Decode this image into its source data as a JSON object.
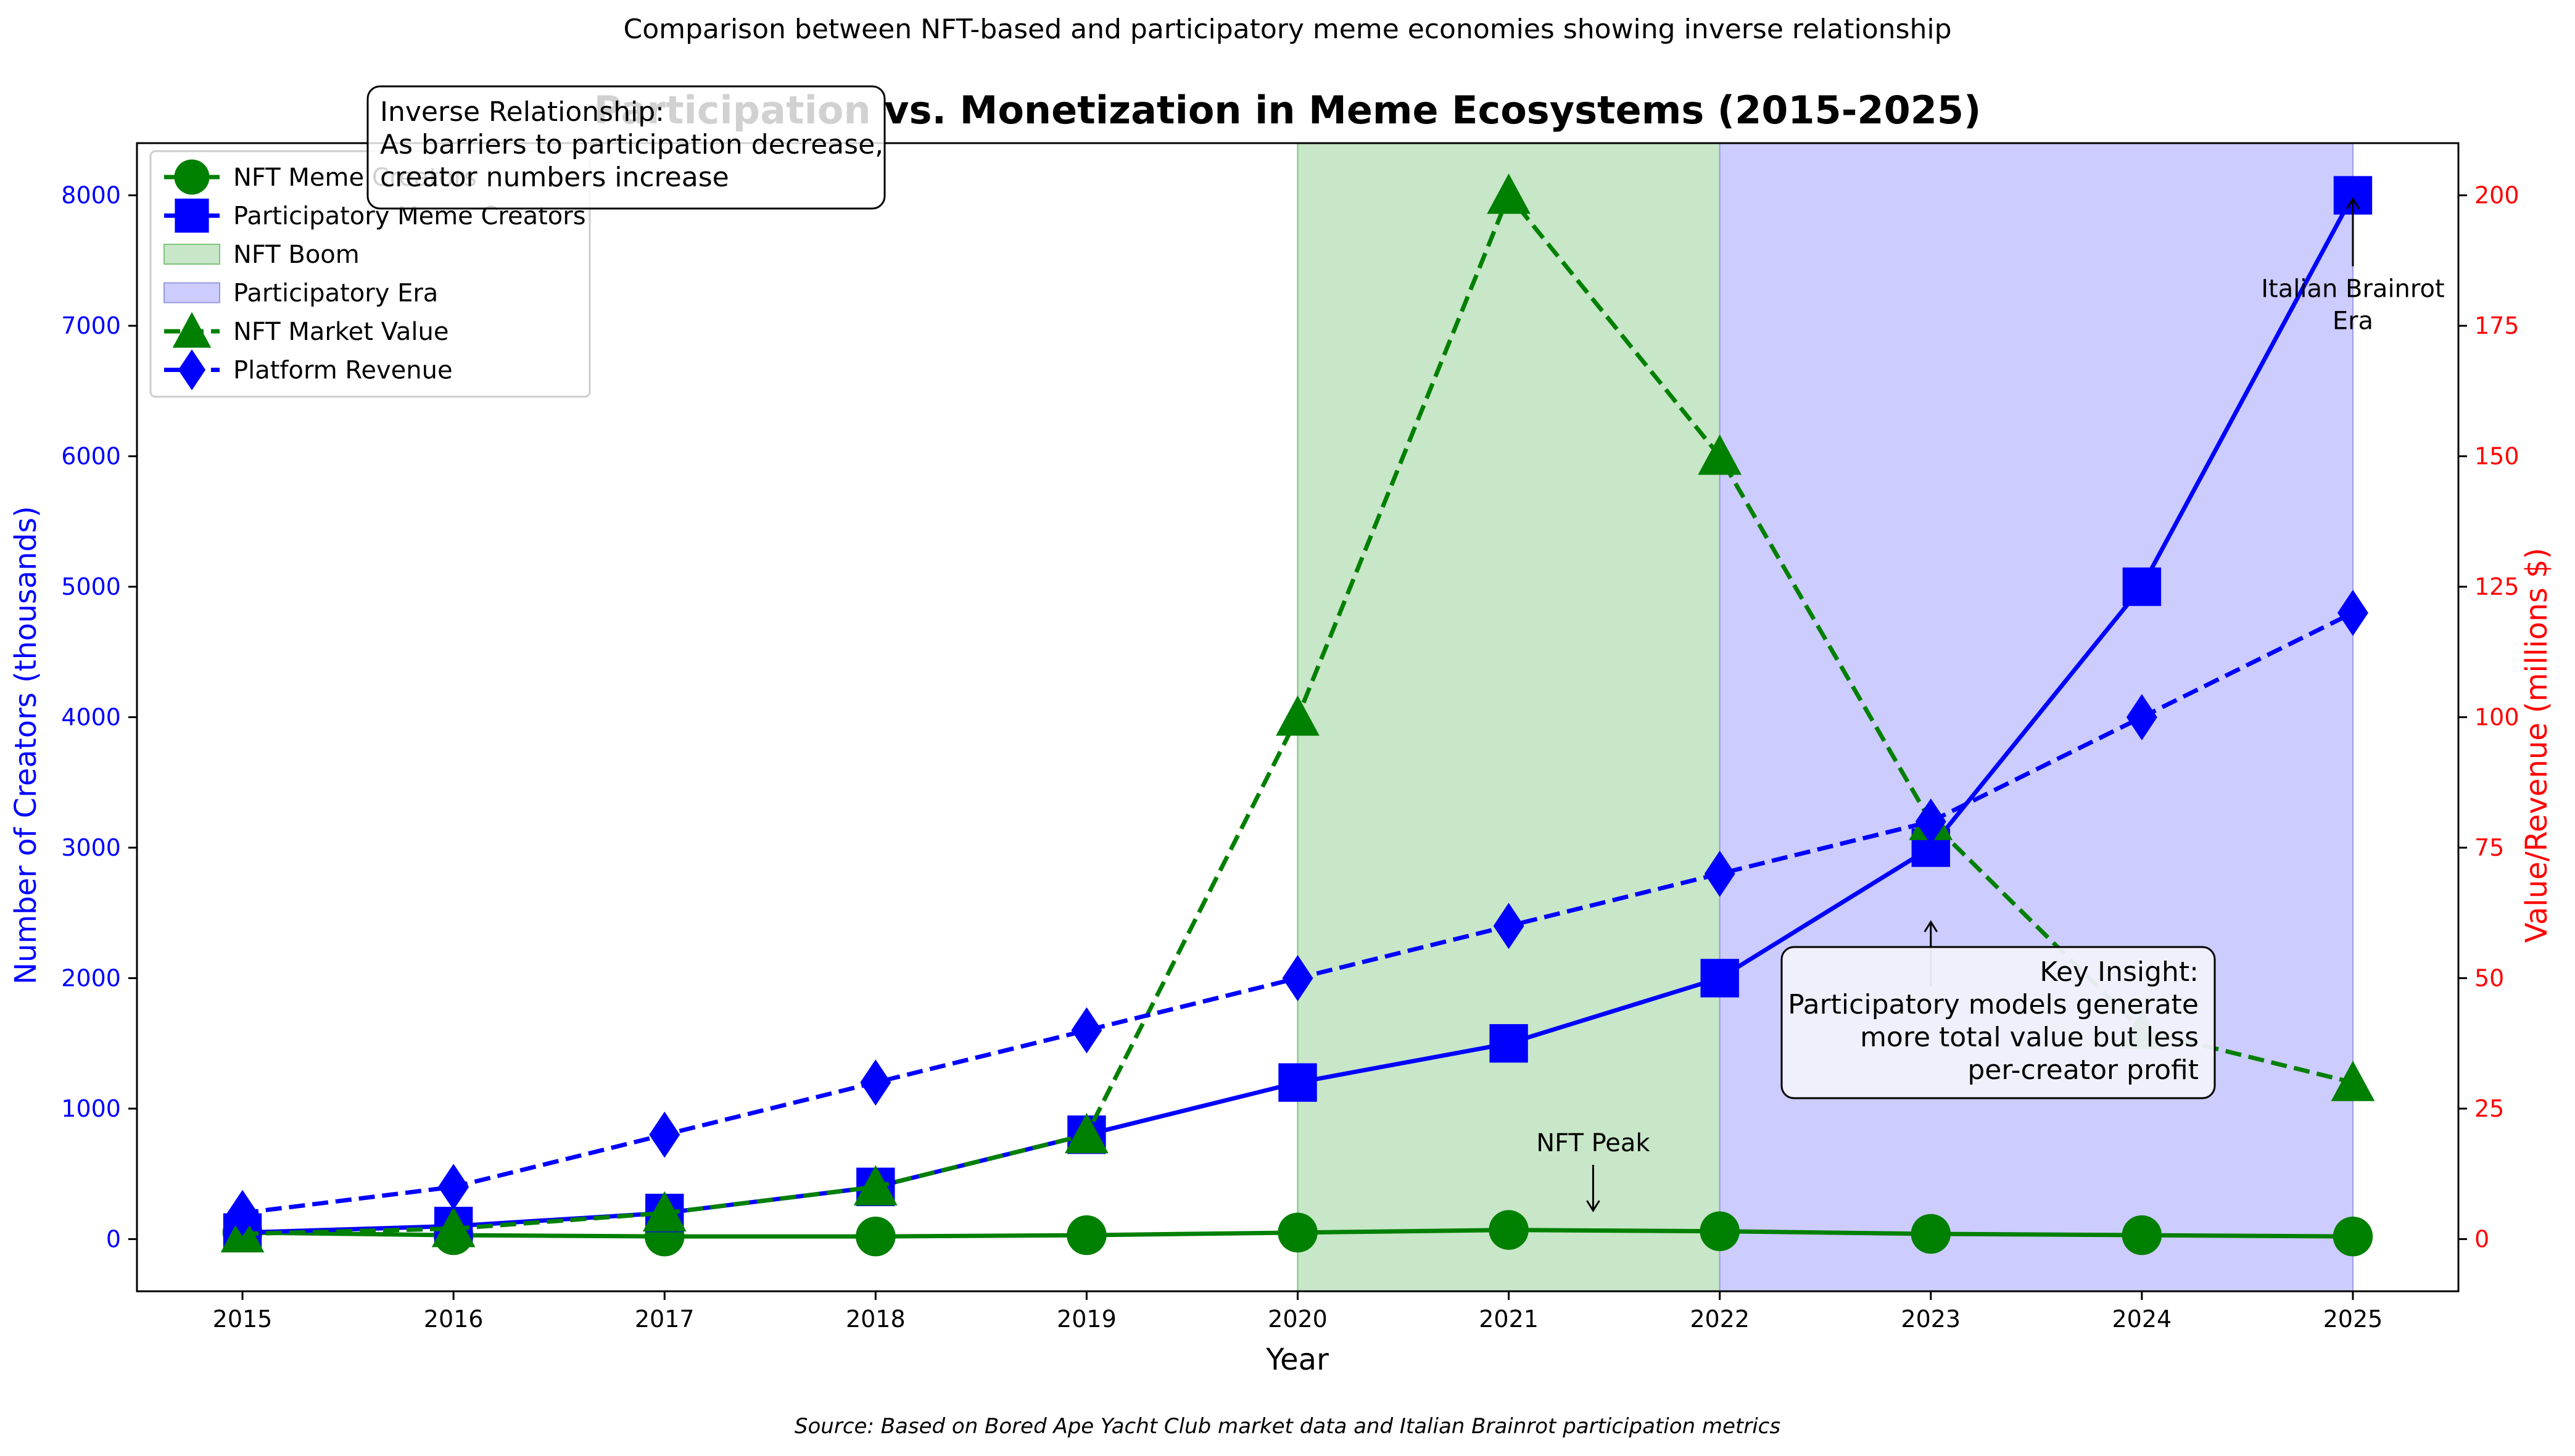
{
  "chart_data": {
    "type": "line",
    "suptitle": "Comparison between NFT-based and participatory meme economies showing inverse relationship",
    "title": "Participation vs. Monetization in Meme Ecosystems (2015-2025)",
    "xlabel": "Year",
    "ylabel_left": "Number of Creators (thousands)",
    "ylabel_right": "Value/Revenue (millions $)",
    "source": "Source: Based on Bored Ape Yacht Club market data and Italian Brainrot participation metrics",
    "x": [
      2015,
      2016,
      2017,
      2018,
      2019,
      2020,
      2021,
      2022,
      2023,
      2024,
      2025
    ],
    "x_ticks": [
      "2015",
      "2016",
      "2017",
      "2018",
      "2019",
      "2020",
      "2021",
      "2022",
      "2023",
      "2024",
      "2025"
    ],
    "xlim": [
      2014.5,
      2025.5
    ],
    "ylim_left": [
      -400,
      8400
    ],
    "ylim_right": [
      -10,
      210
    ],
    "yticks_left": [
      "0",
      "1000",
      "2000",
      "3000",
      "4000",
      "5000",
      "6000",
      "7000",
      "8000"
    ],
    "yticks_right": [
      "0",
      "25",
      "50",
      "75",
      "100",
      "125",
      "150",
      "175",
      "200"
    ],
    "grid": false,
    "legend_placement": "upper left",
    "colors": {
      "green": "#008000",
      "blue": "#0000ff",
      "right_axis": "#ff0000",
      "nft_band": "#c8e6c8",
      "participatory_band": "#ccccff"
    },
    "series": [
      {
        "name": "NFT Meme Creators",
        "axis": "left",
        "color": "#008000",
        "style": "solid",
        "marker": "circle",
        "values": [
          50,
          30,
          20,
          20,
          30,
          50,
          70,
          60,
          40,
          30,
          20
        ]
      },
      {
        "name": "Participatory Meme Creators",
        "axis": "left",
        "color": "#0000ff",
        "style": "solid",
        "marker": "square",
        "values": [
          50,
          100,
          200,
          400,
          800,
          1200,
          1500,
          2000,
          3000,
          5000,
          8000
        ]
      },
      {
        "name": "NFT Market Value",
        "axis": "right",
        "color": "#008000",
        "style": "dashed",
        "marker": "triangle",
        "values": [
          1,
          2,
          5,
          10,
          20,
          100,
          200,
          150,
          80,
          40,
          30
        ]
      },
      {
        "name": "Platform Revenue",
        "axis": "right",
        "color": "#0000ff",
        "style": "dashed",
        "marker": "diamond",
        "values": [
          5,
          10,
          20,
          30,
          40,
          50,
          60,
          70,
          80,
          100,
          120
        ]
      }
    ],
    "spans": [
      {
        "name": "NFT Boom",
        "x_start": 2020,
        "x_end": 2022,
        "color": "#c8e6c8"
      },
      {
        "name": "Participatory Era",
        "x_start": 2022,
        "x_end": 2025,
        "color": "#ccccff"
      }
    ],
    "annotations": {
      "nft_peak": {
        "text": "NFT Peak",
        "x": 2021.4,
        "y_left": 200
      },
      "italian": {
        "lines": [
          "Italian Brainrot",
          "Era"
        ],
        "x": 2025,
        "y_left": 8000
      },
      "key_insight": {
        "lines": [
          "Key Insight:",
          "Participatory models generate",
          "more total value but less",
          "per-creator profit"
        ],
        "x": 2023,
        "y_left": 2450
      },
      "inverse": {
        "lines": [
          "Inverse Relationship:",
          "As barriers to participation decrease,",
          "creator numbers increase"
        ]
      }
    }
  }
}
